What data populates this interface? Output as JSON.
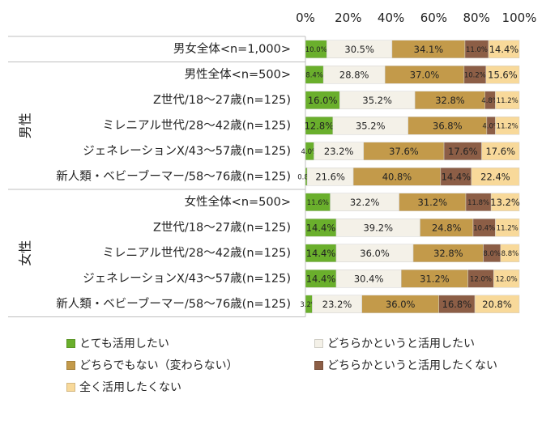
{
  "chart_data": {
    "type": "bar",
    "orientation": "horizontal",
    "stacked": true,
    "percent_axis_ticks": [
      "0%",
      "20%",
      "40%",
      "60%",
      "80%",
      "100%"
    ],
    "xlim": [
      0,
      100
    ],
    "groups": [
      {
        "label": "",
        "rows": [
          0
        ]
      },
      {
        "label": "男性",
        "rows": [
          1,
          2,
          3,
          4,
          5
        ]
      },
      {
        "label": "女性",
        "rows": [
          6,
          7,
          8,
          9,
          10
        ]
      }
    ],
    "categories": [
      "男女全体<n=1,000>",
      "男性全体<n=500>",
      "Z世代/18～27歳(n=125)",
      "ミレニアル世代/28～42歳(n=125)",
      "ジェネレーションX/43～57歳(n=125)",
      "新人類・ベビーブーマー/58～76歳(n=125)",
      "女性全体<n=500>",
      "Z世代/18～27歳(n=125)",
      "ミレニアル世代/28～42歳(n=125)",
      "ジェネレーションX/43～57歳(n=125)",
      "新人類・ベビーブーマー/58～76歳(n=125)"
    ],
    "series": [
      {
        "name": "とても活用したい",
        "color": "#6aaf2c",
        "values": [
          10.0,
          8.4,
          16.0,
          12.8,
          4.0,
          0.8,
          11.6,
          14.4,
          14.4,
          14.4,
          3.2
        ],
        "labels": [
          "10.0%",
          "8.4%",
          "16.0%",
          "12.8%",
          "4.0%",
          "0.8%",
          "11.6%",
          "14.4%",
          "14.4%",
          "14.4%",
          "3.2%"
        ]
      },
      {
        "name": "どちらかというと活用したい",
        "color": "#f4f1e8",
        "values": [
          30.5,
          28.8,
          35.2,
          35.2,
          23.2,
          21.6,
          32.2,
          39.2,
          36.0,
          30.4,
          23.2
        ],
        "labels": [
          "30.5%",
          "28.8%",
          "35.2%",
          "35.2%",
          "23.2%",
          "21.6%",
          "32.2%",
          "39.2%",
          "36.0%",
          "30.4%",
          "23.2%"
        ]
      },
      {
        "name": "どちらでもない（変わらない）",
        "color": "#c39a4a",
        "values": [
          34.1,
          37.0,
          32.8,
          36.8,
          37.6,
          40.8,
          31.2,
          24.8,
          32.8,
          31.2,
          36.0
        ],
        "labels": [
          "34.1%",
          "37.0%",
          "32.8%",
          "36.8%",
          "37.6%",
          "40.8%",
          "31.2%",
          "24.8%",
          "32.8%",
          "31.2%",
          "36.0%"
        ]
      },
      {
        "name": "どちらかというと活用したくない",
        "color": "#8c5e46",
        "values": [
          11.0,
          10.2,
          4.8,
          4.0,
          17.6,
          14.4,
          11.8,
          10.4,
          8.0,
          12.0,
          16.8
        ],
        "labels": [
          "11.0%",
          "10.2%",
          "4.8%",
          "4.0%",
          "17.6%",
          "14.4%",
          "11.8%",
          "10.4%",
          "8.0%",
          "12.0%",
          "16.8%"
        ]
      },
      {
        "name": "全く活用したくない",
        "color": "#f8d99a",
        "values": [
          14.4,
          15.6,
          11.2,
          11.2,
          17.6,
          22.4,
          13.2,
          11.2,
          8.8,
          12.0,
          20.8
        ],
        "labels": [
          "14.4%",
          "15.6%",
          "11.2%",
          "11.2%",
          "17.6%",
          "22.4%",
          "13.2%",
          "11.2%",
          "8.8%",
          "12.0%",
          "20.8%"
        ]
      }
    ]
  }
}
